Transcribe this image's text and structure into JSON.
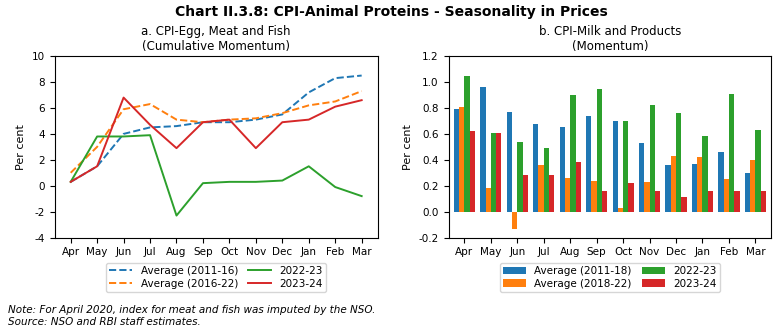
{
  "title": "Chart II.3.8: CPI-Animal Proteins - Seasonality in Prices",
  "notes": [
    "Note: For April 2020, index for meat and fish was imputed by the NSO.",
    "Source: NSO and RBI staff estimates."
  ],
  "chart_data": [
    {
      "type": "line",
      "title": "a. CPI-Egg, Meat and Fish\n(Cumulative Momentum)",
      "y_label": "Per cent",
      "categories": [
        "Apr",
        "May",
        "Jun",
        "Jul",
        "Aug",
        "Sep",
        "Oct",
        "Nov",
        "Dec",
        "Jan",
        "Feb",
        "Mar"
      ],
      "series": [
        {
          "name": "Average (2011-16)",
          "line_style": "dashed",
          "values": [
            0.3,
            1.5,
            4.0,
            4.5,
            4.6,
            4.9,
            4.9,
            5.1,
            5.5,
            7.2,
            8.3,
            8.5
          ]
        },
        {
          "name": "Average (2016-22)",
          "line_style": "dashed",
          "values": [
            1.0,
            3.0,
            5.9,
            6.3,
            5.1,
            4.9,
            5.1,
            5.2,
            5.6,
            6.2,
            6.5,
            7.3
          ]
        },
        {
          "name": "2022-23",
          "line_style": "solid",
          "values": [
            0.3,
            3.8,
            3.8,
            3.9,
            -2.3,
            0.2,
            0.3,
            0.3,
            0.4,
            1.5,
            -0.1,
            -0.8
          ]
        },
        {
          "name": "2023-24",
          "line_style": "solid",
          "values": [
            0.3,
            1.5,
            6.8,
            4.7,
            2.9,
            4.9,
            5.1,
            2.9,
            4.9,
            5.1,
            6.1,
            6.6
          ]
        }
      ],
      "ylim": [
        -4,
        10
      ],
      "yticks": [
        -4,
        -2,
        0,
        2,
        4,
        6,
        8,
        10
      ],
      "grid": false,
      "legend": "upper center"
    },
    {
      "type": "bar",
      "title": "b. CPI-Milk and Products\n(Momentum)",
      "y_label": "Per cent",
      "categories": [
        "Apr",
        "May",
        "Jun",
        "Jul",
        "Aug",
        "Sep",
        "Oct",
        "Nov",
        "Dec",
        "Jan",
        "Feb",
        "Mar"
      ],
      "series": [
        {
          "name": "Average (2011-18)",
          "values": [
            0.79,
            0.96,
            0.77,
            0.68,
            0.65,
            0.74,
            0.7,
            0.53,
            0.36,
            0.37,
            0.46,
            0.3
          ]
        },
        {
          "name": "Average (2018-22)",
          "values": [
            0.81,
            0.18,
            -0.13,
            0.36,
            0.26,
            0.24,
            0.03,
            0.23,
            0.43,
            0.42,
            0.25,
            0.4
          ]
        },
        {
          "name": "2022-23",
          "values": [
            1.05,
            0.61,
            0.54,
            0.49,
            0.9,
            0.95,
            0.7,
            0.82,
            0.76,
            0.58,
            0.91,
            0.63
          ]
        },
        {
          "name": "2023-24",
          "values": [
            0.62,
            0.61,
            0.28,
            0.28,
            0.38,
            0.16,
            0.22,
            0.16,
            0.11,
            0.16,
            0.16,
            0.16
          ]
        }
      ],
      "ylim": [
        -0.2,
        1.2
      ],
      "yticks": [
        -0.2,
        {
          "value": 0.0,
          "label": "0.0"
        },
        0.2,
        0.4,
        0.6,
        0.8,
        {
          "value": 1.0,
          "label": "1.0"
        },
        1.2
      ],
      "grid": false,
      "legend": "upper center"
    }
  ]
}
